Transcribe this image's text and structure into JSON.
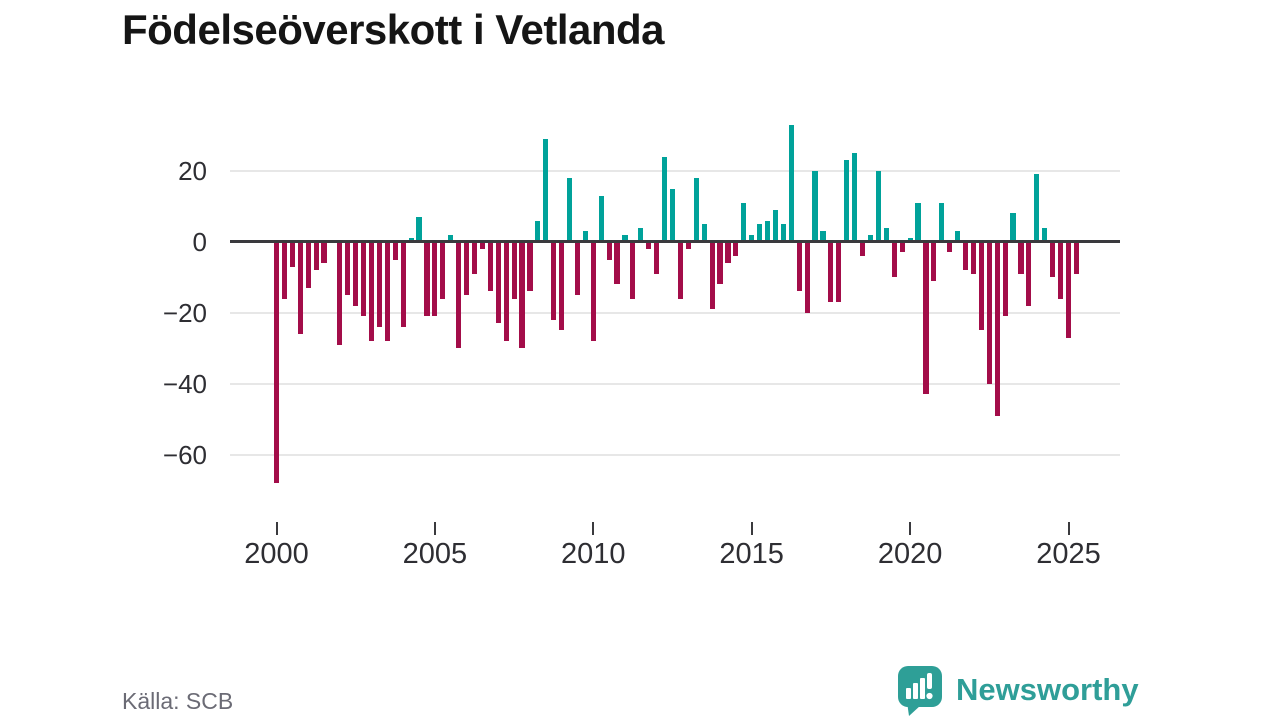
{
  "title": "Födelseöverskott i Vetlanda",
  "source": "Källa: SCB",
  "branding": {
    "name": "Newsworthy",
    "color": "#2f9e98",
    "icon": "speech-bubble-bar-chart-icon"
  },
  "chart_data": {
    "type": "bar",
    "title": "Födelseöverskott i Vetlanda",
    "period": "quarterly",
    "x_start": "2000-Q1",
    "x_end": "2025-Q2",
    "x_tick_labels": [
      "2000",
      "2005",
      "2010",
      "2015",
      "2020",
      "2025"
    ],
    "x_tick_indices": [
      0,
      20,
      40,
      60,
      80,
      100
    ],
    "y_ticks": [
      20,
      0,
      -20,
      -40,
      -60
    ],
    "y_gridlines": [
      20,
      0,
      -20,
      -40,
      -60
    ],
    "ylim": [
      -78,
      40
    ],
    "grid": true,
    "legend": "none",
    "colors": {
      "positive": "#00a29a",
      "negative": "#a30d49",
      "zero_line": "#3a3a3e",
      "gridline": "#e7e7e7"
    },
    "values": [
      -68,
      -16,
      -7,
      -26,
      -13,
      -8,
      -6,
      0,
      -29,
      -15,
      -18,
      -21,
      -28,
      -24,
      -28,
      -5,
      -24,
      1,
      7,
      -21,
      -21,
      -16,
      2,
      -30,
      -15,
      -9,
      -2,
      -14,
      -23,
      -28,
      -16,
      -30,
      -14,
      6,
      29,
      -22,
      -25,
      18,
      -15,
      3,
      -28,
      13,
      -5,
      -12,
      2,
      -16,
      4,
      -2,
      -9,
      24,
      15,
      -16,
      -2,
      18,
      5,
      -19,
      -12,
      -6,
      -4,
      11,
      2,
      5,
      6,
      9,
      5,
      33,
      -14,
      -20,
      20,
      3,
      -17,
      -17,
      23,
      25,
      -4,
      2,
      20,
      4,
      -10,
      -3,
      1,
      11,
      -43,
      -11,
      11,
      -3,
      3,
      -8,
      -9,
      -25,
      -40,
      -49,
      -21,
      8,
      -9,
      -18,
      19,
      4,
      -10,
      -16,
      -27,
      -9
    ]
  }
}
